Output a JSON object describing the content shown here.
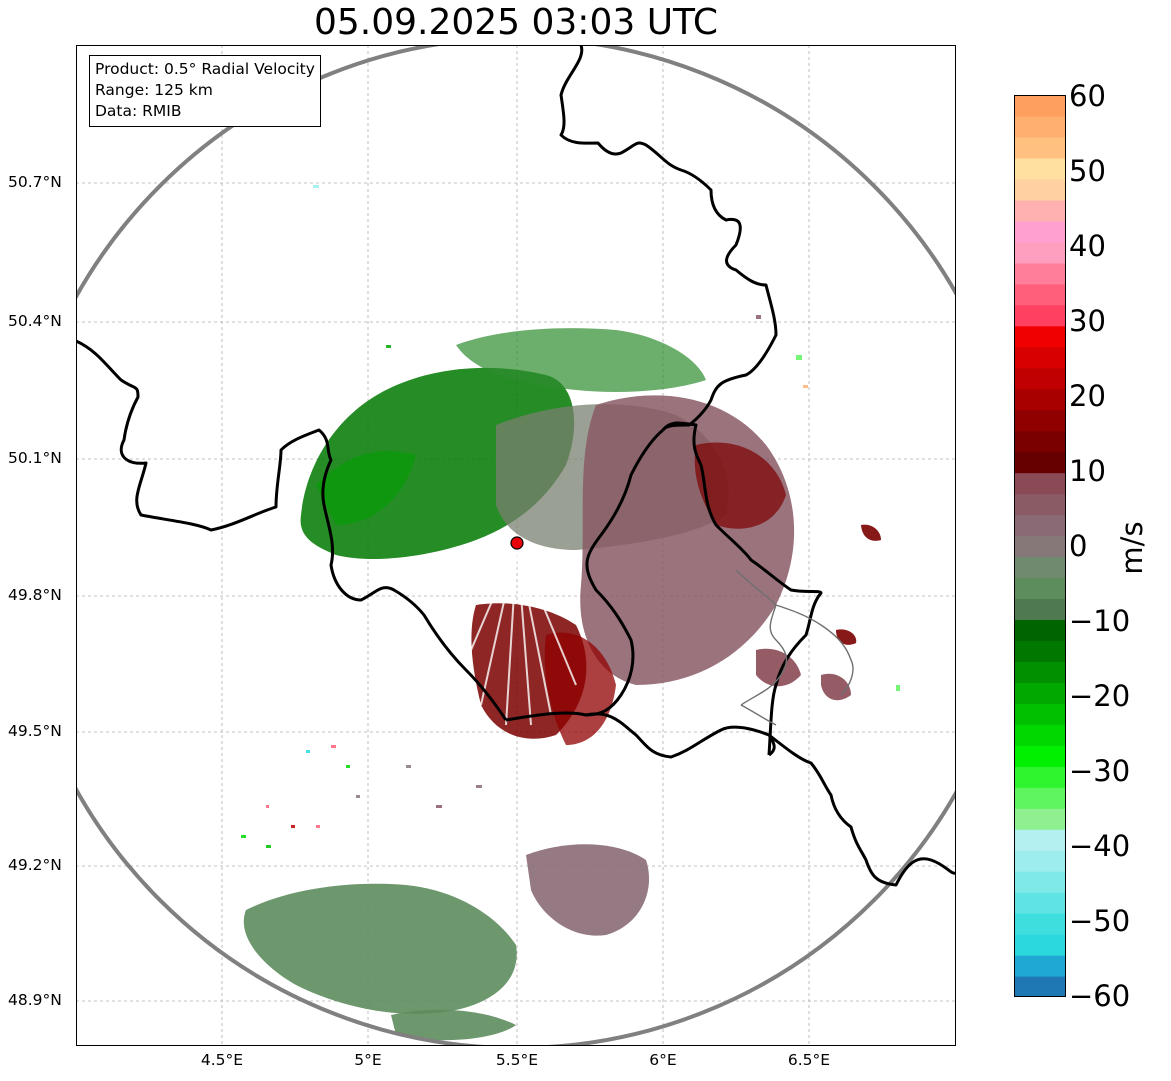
{
  "title": "05.09.2025 03:03 UTC",
  "info": {
    "product": "Product: 0.5° Radial Velocity",
    "range": "Range: 125 km",
    "source": "Data: RMIB"
  },
  "lat_ticks": [
    "50.7°N",
    "50.4°N",
    "50.1°N",
    "49.8°N",
    "49.5°N",
    "49.2°N",
    "48.9°N"
  ],
  "lon_ticks": [
    "4.5°E",
    "5°E",
    "5.5°E",
    "6°E",
    "6.5°E"
  ],
  "colorbar": {
    "label": "m/s",
    "ticks": [
      "60",
      "50",
      "40",
      "30",
      "20",
      "10",
      "0",
      "−10",
      "−20",
      "−30",
      "−40",
      "−50",
      "−60"
    ],
    "range": [
      -60,
      60
    ],
    "colors": [
      "#1f77b4",
      "#1fa8d4",
      "#2bd8dc",
      "#3fdede",
      "#5fe3e3",
      "#7fe8e8",
      "#9deded",
      "#b5f0f0",
      "#8ef08e",
      "#5ef55e",
      "#2ef52e",
      "#00f000",
      "#00d800",
      "#00c000",
      "#00a800",
      "#009000",
      "#007800",
      "#006400",
      "#4f7a4f",
      "#5d8c5d",
      "#6f8a6f",
      "#867878",
      "#8a6b75",
      "#8a5a65",
      "#8a4a55",
      "#660000",
      "#7a0000",
      "#900000",
      "#a80000",
      "#c00000",
      "#d80000",
      "#f00000",
      "#ff4060",
      "#ff5f7a",
      "#ff7f9a",
      "#ff9fc0",
      "#ffa0d0",
      "#ffb0b0",
      "#ffd0a0",
      "#ffe0a0",
      "#ffc080",
      "#ffb070",
      "#ff9f5f"
    ],
    "key_colors": {
      "zero": "#8b7a78",
      "negative": "#007800",
      "positive": "#7a0000"
    }
  },
  "map": {
    "radar_site": {
      "lat": 49.91,
      "lon": 5.5,
      "color": "#e8000b"
    },
    "lat_range": [
      48.81,
      51.0
    ],
    "lon_range": [
      4.0,
      7.0
    ],
    "range_ring_color": "#808080",
    "border_color": "#000000"
  }
}
